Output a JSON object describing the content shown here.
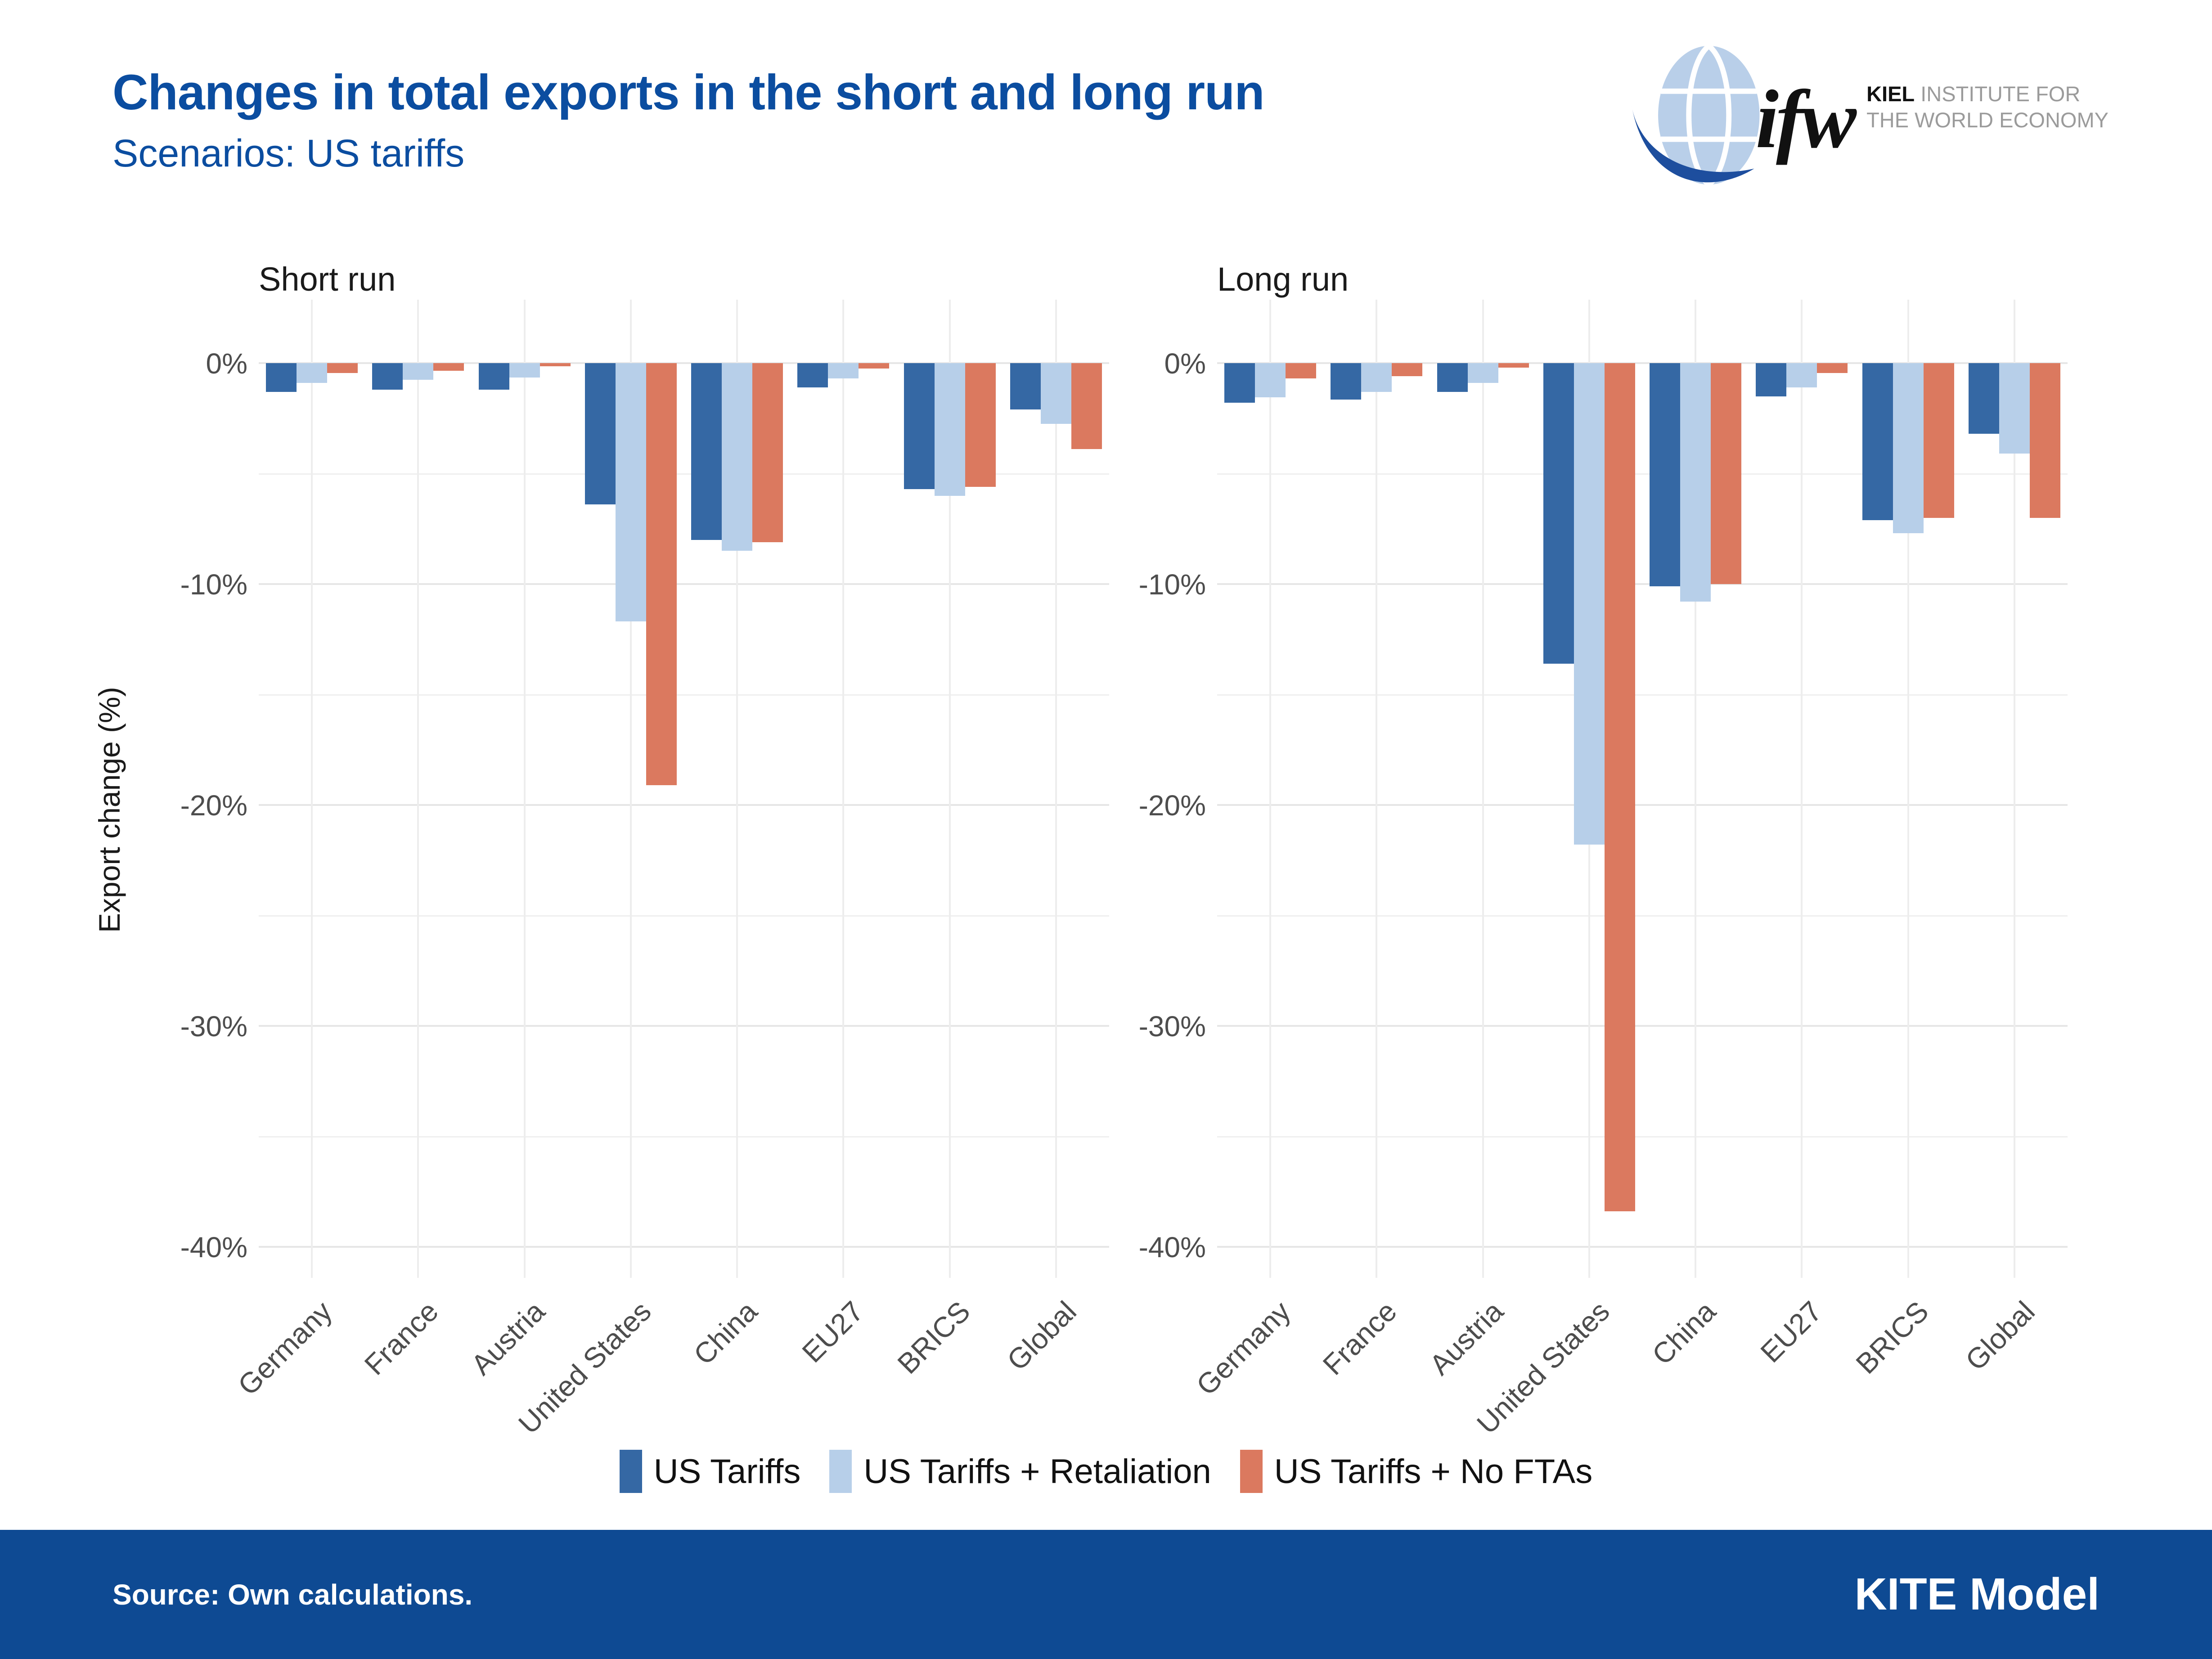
{
  "header": {
    "title": "Changes in total exports in the short and long run",
    "subtitle": "Scenarios: US tariffs",
    "logo": {
      "name": "ifw",
      "org_bold": "KIEL",
      "org_line1": "INSTITUTE FOR",
      "org_line2": "THE WORLD ECONOMY"
    }
  },
  "chart_data": {
    "type": "bar",
    "grouped": true,
    "categories": [
      "Germany",
      "France",
      "Austria",
      "United States",
      "China",
      "EU27",
      "BRICS",
      "Global"
    ],
    "ylabel": "Export change (%)",
    "ylim": [
      0,
      -40
    ],
    "yticks": [
      {
        "value": 0,
        "label": "0%"
      },
      {
        "value": -10,
        "label": "-10%"
      },
      {
        "value": -20,
        "label": "-20%"
      },
      {
        "value": -30,
        "label": "-30%"
      },
      {
        "value": -40,
        "label": "-40%"
      }
    ],
    "yminor": [
      -5,
      -15,
      -25,
      -35
    ],
    "grid": "on",
    "legend_position": "bottom",
    "series_colors": {
      "US Tariffs": "#3568a4",
      "US Tariffs + Retaliation": "#b7cfe9",
      "US Tariffs + No FTAs": "#db795f"
    },
    "panels": [
      {
        "title": "Short run",
        "series": [
          {
            "name": "US Tariffs",
            "color": "#3568a4",
            "values": [
              -1.3,
              -1.2,
              -1.2,
              -6.4,
              -8.0,
              -1.1,
              -5.7,
              -2.1
            ]
          },
          {
            "name": "US Tariffs + Retaliation",
            "color": "#b7cfe9",
            "values": [
              -0.9,
              -0.75,
              -0.65,
              -11.7,
              -8.5,
              -0.7,
              -6.0,
              -2.75
            ]
          },
          {
            "name": "US Tariffs + No FTAs",
            "color": "#db795f",
            "values": [
              -0.45,
              -0.35,
              -0.15,
              -19.1,
              -8.1,
              -0.25,
              -5.6,
              -3.9
            ]
          }
        ]
      },
      {
        "title": "Long run",
        "series": [
          {
            "name": "US Tariffs",
            "color": "#3568a4",
            "values": [
              -1.8,
              -1.65,
              -1.3,
              -13.6,
              -10.1,
              -1.5,
              -7.1,
              -3.2
            ]
          },
          {
            "name": "US Tariffs + Retaliation",
            "color": "#b7cfe9",
            "values": [
              -1.55,
              -1.3,
              -0.9,
              -21.8,
              -10.8,
              -1.1,
              -7.7,
              -4.1
            ]
          },
          {
            "name": "US Tariffs + No FTAs",
            "color": "#db795f",
            "values": [
              -0.7,
              -0.6,
              -0.2,
              -38.4,
              -10.0,
              -0.45,
              -7.0,
              -7.0
            ]
          }
        ]
      }
    ],
    "legend": [
      "US Tariffs",
      "US Tariffs + Retaliation",
      "US Tariffs + No FTAs"
    ]
  },
  "footer": {
    "source": "Source: Own calculations.",
    "model": "KITE Model"
  }
}
